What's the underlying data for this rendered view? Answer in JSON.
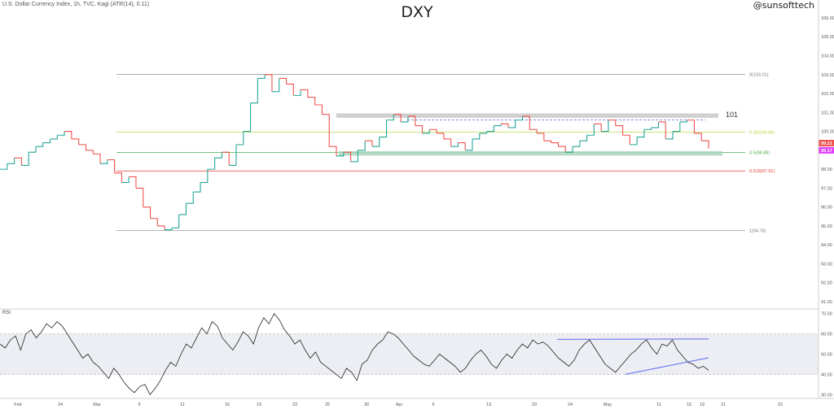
{
  "header": {
    "symbol_info": "U.S. Dollar Currency Index, 1h, TVC, Kagi (ATR(14), 0.11)",
    "title": "DXY",
    "watermark": "@sunsofttech"
  },
  "chart_data": [
    {
      "type": "line",
      "title": "DXY",
      "style": "kagi",
      "colors": {
        "up": "#26a69a",
        "down": "#ef5350"
      },
      "x_labels": [
        "Feb",
        "24",
        "Mar",
        "9",
        "11",
        "16",
        "19",
        "23",
        "25",
        "30",
        "Apr",
        "6",
        "13",
        "20",
        "24",
        "May",
        "11",
        "15",
        "19",
        "21",
        "22"
      ],
      "y_ticks": [
        "106.00",
        "105.00",
        "104.00",
        "103.00",
        "102.00",
        "101.00",
        "100.00",
        "99.00",
        "98.00",
        "97.00",
        "96.00",
        "95.00",
        "94.00",
        "93.00",
        "92.00",
        "91.00"
      ],
      "ylim": [
        90.7,
        106.6
      ],
      "series": [
        {
          "values": [
            98.0,
            98.3,
            98.6,
            98.2,
            98.9,
            99.2,
            99.4,
            99.6,
            99.8,
            100.0,
            99.6,
            99.3,
            99.0,
            98.8,
            98.3,
            98.5,
            97.8,
            97.3,
            97.6,
            97.0,
            96.0,
            95.4,
            95.0,
            94.8,
            94.9,
            95.6,
            96.2,
            96.8,
            97.3,
            98.0,
            98.6,
            98.9,
            98.2,
            99.3,
            100.0,
            101.5,
            102.8,
            103.0,
            102.1,
            102.8,
            102.5,
            101.9,
            102.2,
            101.8,
            101.4,
            100.9,
            99.2,
            98.7,
            98.9,
            98.4,
            99.0,
            99.5,
            99.2,
            99.7,
            100.6,
            100.9,
            100.5,
            100.8,
            100.3,
            99.9,
            100.1,
            99.9,
            99.6,
            99.2,
            99.4,
            99.0,
            99.6,
            99.9,
            100.0,
            100.3,
            100.4,
            100.2,
            100.6,
            100.8,
            100.1,
            99.9,
            99.5,
            99.4,
            99.2,
            98.9,
            99.2,
            99.5,
            99.8,
            100.4,
            100.0,
            100.6,
            100.3,
            99.8,
            99.3,
            99.7,
            100.1,
            100.2,
            100.5,
            99.6,
            100.0,
            100.5,
            100.6,
            99.9,
            99.5,
            99.1
          ]
        }
      ],
      "fib_levels": [
        {
          "label": "0(103.01)",
          "value": 103.01,
          "color": "#9e9e9e"
        },
        {
          "label": "0.382(99.96)",
          "value": 99.96,
          "color": "#b8d84a"
        },
        {
          "label": "0.5(98.88)",
          "value": 98.88,
          "color": "#4caf50"
        },
        {
          "label": "0.618(97.91)",
          "value": 97.91,
          "color": "#e53935"
        },
        {
          "label": "1(94.76)",
          "value": 94.76,
          "color": "#9e9e9e"
        }
      ],
      "zones": [
        {
          "from": 100.72,
          "to": 100.95
        },
        {
          "from": 98.72,
          "to": 98.95
        }
      ],
      "annotation": "101",
      "price_tags": [
        {
          "label": "99.21",
          "value": 99.21,
          "color": "#ef5350"
        },
        {
          "label": "99.17",
          "value": 99.17,
          "color": "#e040fb"
        }
      ]
    },
    {
      "type": "line",
      "title": "RSI",
      "y_ticks": [
        "70.00",
        "60.00",
        "50.00",
        "40.00",
        "30.00"
      ],
      "ylim": [
        28.5,
        71.5
      ],
      "band": [
        40,
        60
      ],
      "series": [
        {
          "values": [
            55,
            53,
            57,
            59,
            52,
            60,
            62,
            58,
            61,
            65,
            63,
            66,
            64,
            60,
            56,
            52,
            48,
            50,
            46,
            44,
            41,
            38,
            43,
            40,
            36,
            33,
            31,
            34,
            35,
            30,
            33,
            37,
            42,
            46,
            44,
            50,
            55,
            53,
            58,
            63,
            60,
            66,
            64,
            58,
            55,
            52,
            56,
            61,
            59,
            55,
            63,
            68,
            65,
            70,
            67,
            62,
            59,
            55,
            57,
            52,
            48,
            51,
            46,
            44,
            42,
            40,
            38,
            43,
            41,
            37,
            45,
            47,
            52,
            55,
            57,
            61,
            60,
            58,
            55,
            52,
            49,
            47,
            45,
            44,
            47,
            50,
            48,
            46,
            44,
            41,
            43,
            47,
            50,
            52,
            49,
            45,
            43,
            47,
            50,
            48,
            52,
            55,
            53,
            57,
            55,
            56,
            54,
            51,
            48,
            46,
            44,
            47,
            52,
            55,
            57,
            53,
            49,
            45,
            43,
            41,
            44,
            47,
            50,
            52,
            55,
            57,
            53,
            50,
            55,
            54,
            57,
            52,
            49,
            46,
            45,
            43,
            44,
            42
          ]
        }
      ],
      "trendlines": [
        {
          "from": [
            0.57,
            57.3
          ],
          "to": [
            0.93,
            57.5
          ]
        },
        {
          "from": [
            0.64,
            40.0
          ],
          "to": [
            0.97,
            48.2
          ]
        }
      ]
    }
  ]
}
